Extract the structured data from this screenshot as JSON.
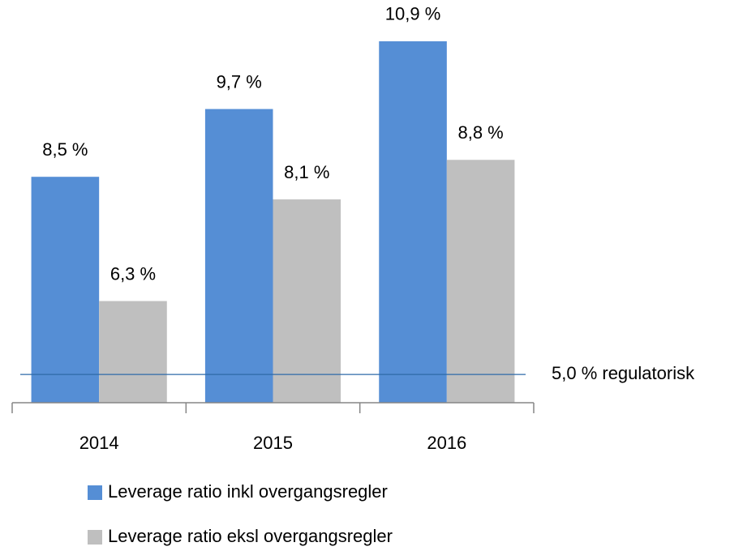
{
  "chart_data": {
    "type": "bar",
    "categories": [
      "2014",
      "2015",
      "2016"
    ],
    "series": [
      {
        "name": "Leverage ratio inkl overgangsregler",
        "color": "#558ed5",
        "values": [
          8.5,
          9.7,
          10.9
        ],
        "value_labels": [
          "8,5 %",
          "9,7 %",
          "10,9 %"
        ]
      },
      {
        "name": "Leverage ratio eksl overgangsregler",
        "color": "#bfbfbf",
        "values": [
          6.3,
          8.1,
          8.8
        ],
        "value_labels": [
          "6,3 %",
          "8,1 %",
          "8,8 %"
        ]
      }
    ],
    "reference_line": {
      "value": 5.0,
      "label": "5,0 % regulatorisk",
      "color": "#2e6aa8"
    },
    "ylim": [
      4.5,
      11.2
    ],
    "legend": "bottom"
  }
}
